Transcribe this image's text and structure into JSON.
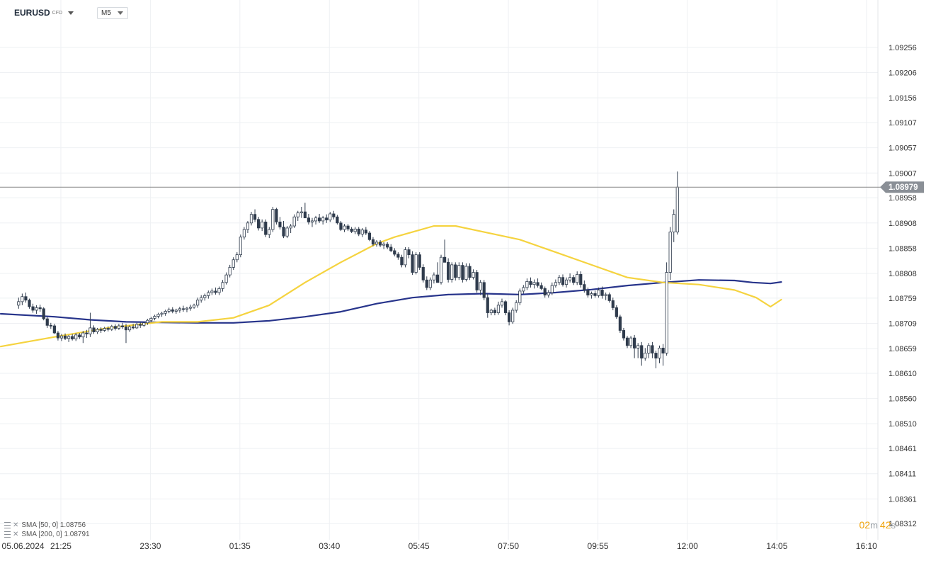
{
  "toolbar": {
    "symbol": "EURUSD",
    "symbol_type": "CFD",
    "timeframe": "M5"
  },
  "indicators": [
    {
      "label": "SMA [50, 0]",
      "value": "1.08756",
      "color": "#f5d33f"
    },
    {
      "label": "SMA [200, 0]",
      "value": "1.08791",
      "color": "#27348b"
    }
  ],
  "countdown": {
    "minutes": "02",
    "minutes_unit": "m",
    "seconds": "42",
    "seconds_unit": "s"
  },
  "chart_data": {
    "type": "candlestick",
    "ylim": [
      1.0828,
      1.0935
    ],
    "y_ticks": [
      "1.09256",
      "1.09206",
      "1.09156",
      "1.09107",
      "1.09057",
      "1.09007",
      "1.08958",
      "1.08908",
      "1.08858",
      "1.08808",
      "1.08759",
      "1.08709",
      "1.08659",
      "1.08610",
      "1.08560",
      "1.08510",
      "1.08461",
      "1.08411",
      "1.08361",
      "1.08312"
    ],
    "x_ticks": [
      "05.06.2024",
      "21:25",
      "23:30",
      "01:35",
      "03:40",
      "05:45",
      "07:50",
      "09:55",
      "12:00",
      "14:05",
      "16:10"
    ],
    "x_tick_index": [
      -4.7,
      11.8,
      36.8,
      61.8,
      86.8,
      111.8,
      136.8,
      161.8,
      186.8,
      211.8,
      236.8
    ],
    "x_range": [
      -5.2,
      240
    ],
    "last_price": "1.08979",
    "last_price_value": 1.08979,
    "colors": {
      "up": "#ffffff",
      "down": "#2f3b4c",
      "wick": "#2f3b4c",
      "sma50": "#f5d33f",
      "sma200": "#27348b",
      "price_line": "#888888",
      "price_tag": "#8a8f96",
      "grid": "#eef0f3",
      "axis_text": "#333333"
    },
    "candles": [
      [
        1.08745,
        1.0876,
        1.08738,
        1.08752
      ],
      [
        1.08752,
        1.08768,
        1.08745,
        1.08762
      ],
      [
        1.08762,
        1.0877,
        1.0875,
        1.08755
      ],
      [
        1.08755,
        1.08758,
        1.08738,
        1.08742
      ],
      [
        1.08742,
        1.08748,
        1.0873,
        1.08735
      ],
      [
        1.08735,
        1.08745,
        1.08728,
        1.0874
      ],
      [
        1.0874,
        1.08746,
        1.08732,
        1.08738
      ],
      [
        1.08738,
        1.08741,
        1.08715,
        1.08718
      ],
      [
        1.08718,
        1.08722,
        1.087,
        1.08705
      ],
      [
        1.08705,
        1.0871,
        1.08698,
        1.08704
      ],
      [
        1.08704,
        1.08708,
        1.08688,
        1.0869
      ],
      [
        1.0869,
        1.08694,
        1.08675,
        1.0868
      ],
      [
        1.0868,
        1.08688,
        1.08674,
        1.08684
      ],
      [
        1.08684,
        1.08689,
        1.08676,
        1.08679
      ],
      [
        1.08679,
        1.08686,
        1.08672,
        1.08683
      ],
      [
        1.08683,
        1.08688,
        1.08675,
        1.08678
      ],
      [
        1.08678,
        1.0869,
        1.08674,
        1.08686
      ],
      [
        1.08686,
        1.0869,
        1.08678,
        1.08682
      ],
      [
        1.08682,
        1.08694,
        1.0867,
        1.0869
      ],
      [
        1.0869,
        1.08696,
        1.0868,
        1.08688
      ],
      [
        1.08688,
        1.0873,
        1.08682,
        1.087
      ],
      [
        1.087,
        1.08705,
        1.08688,
        1.08692
      ],
      [
        1.08692,
        1.087,
        1.08688,
        1.08697
      ],
      [
        1.08697,
        1.08701,
        1.0869,
        1.08695
      ],
      [
        1.08695,
        1.08702,
        1.08692,
        1.08699
      ],
      [
        1.08699,
        1.08703,
        1.08693,
        1.08697
      ],
      [
        1.08697,
        1.08706,
        1.08694,
        1.08703
      ],
      [
        1.08703,
        1.08707,
        1.08695,
        1.08699
      ],
      [
        1.08699,
        1.08708,
        1.08696,
        1.08704
      ],
      [
        1.08704,
        1.0871,
        1.08698,
        1.08702
      ],
      [
        1.08702,
        1.08708,
        1.0867,
        1.08696
      ],
      [
        1.08696,
        1.08705,
        1.08692,
        1.08702
      ],
      [
        1.08702,
        1.08708,
        1.08697,
        1.087
      ],
      [
        1.087,
        1.0871,
        1.08698,
        1.08707
      ],
      [
        1.08707,
        1.08712,
        1.087,
        1.08705
      ],
      [
        1.08705,
        1.08712,
        1.08702,
        1.0871
      ],
      [
        1.0871,
        1.08718,
        1.08706,
        1.08715
      ],
      [
        1.08715,
        1.08722,
        1.08711,
        1.08719
      ],
      [
        1.08719,
        1.08726,
        1.08715,
        1.08723
      ],
      [
        1.08723,
        1.0873,
        1.08719,
        1.08727
      ],
      [
        1.08727,
        1.08732,
        1.08722,
        1.08729
      ],
      [
        1.08729,
        1.08736,
        1.08724,
        1.08733
      ],
      [
        1.08733,
        1.0874,
        1.08729,
        1.08736
      ],
      [
        1.08736,
        1.08741,
        1.08729,
        1.08733
      ],
      [
        1.08733,
        1.08738,
        1.08728,
        1.08735
      ],
      [
        1.08735,
        1.08742,
        1.0873,
        1.08738
      ],
      [
        1.08738,
        1.08744,
        1.08732,
        1.08737
      ],
      [
        1.08737,
        1.08742,
        1.08731,
        1.08739
      ],
      [
        1.08739,
        1.08746,
        1.08734,
        1.08741
      ],
      [
        1.08741,
        1.08748,
        1.08738,
        1.08745
      ],
      [
        1.08745,
        1.0876,
        1.0874,
        1.08755
      ],
      [
        1.08755,
        1.08765,
        1.0875,
        1.0876
      ],
      [
        1.0876,
        1.08768,
        1.08754,
        1.08764
      ],
      [
        1.08764,
        1.08774,
        1.08758,
        1.0877
      ],
      [
        1.0877,
        1.08778,
        1.08765,
        1.08773
      ],
      [
        1.08773,
        1.0878,
        1.08766,
        1.0877
      ],
      [
        1.0877,
        1.08782,
        1.08765,
        1.08778
      ],
      [
        1.08778,
        1.08795,
        1.08772,
        1.0879
      ],
      [
        1.0879,
        1.0881,
        1.08786,
        1.08805
      ],
      [
        1.08805,
        1.08825,
        1.088,
        1.0882
      ],
      [
        1.0882,
        1.0884,
        1.08815,
        1.08835
      ],
      [
        1.08835,
        1.0885,
        1.0883,
        1.08845
      ],
      [
        1.08845,
        1.08885,
        1.0884,
        1.0888
      ],
      [
        1.0888,
        1.089,
        1.08875,
        1.08895
      ],
      [
        1.08895,
        1.08912,
        1.08888,
        1.08908
      ],
      [
        1.08908,
        1.0893,
        1.08903,
        1.08925
      ],
      [
        1.08925,
        1.08935,
        1.0891,
        1.08915
      ],
      [
        1.08915,
        1.0892,
        1.08893,
        1.08898
      ],
      [
        1.08898,
        1.08915,
        1.08892,
        1.0891
      ],
      [
        1.0891,
        1.08915,
        1.0888,
        1.08885
      ],
      [
        1.08885,
        1.089,
        1.08878,
        1.08895
      ],
      [
        1.08895,
        1.0894,
        1.0889,
        1.08935
      ],
      [
        1.08935,
        1.08938,
        1.08905,
        1.0891
      ],
      [
        1.0891,
        1.0892,
        1.08895,
        1.089
      ],
      [
        1.089,
        1.08912,
        1.08878,
        1.08882
      ],
      [
        1.08882,
        1.08902,
        1.08878,
        1.08898
      ],
      [
        1.08898,
        1.08906,
        1.08888,
        1.08902
      ],
      [
        1.08902,
        1.08925,
        1.08898,
        1.0892
      ],
      [
        1.0892,
        1.08932,
        1.08912,
        1.08928
      ],
      [
        1.08928,
        1.0894,
        1.08918,
        1.0893
      ],
      [
        1.0893,
        1.08948,
        1.08922,
        1.08918
      ],
      [
        1.08918,
        1.08926,
        1.08905,
        1.0891
      ],
      [
        1.0891,
        1.08918,
        1.089,
        1.08912
      ],
      [
        1.08912,
        1.08922,
        1.08905,
        1.08918
      ],
      [
        1.08918,
        1.08926,
        1.08908,
        1.08912
      ],
      [
        1.08912,
        1.08922,
        1.08905,
        1.08918
      ],
      [
        1.08918,
        1.08925,
        1.08908,
        1.08914
      ],
      [
        1.08914,
        1.0893,
        1.0891,
        1.08926
      ],
      [
        1.08926,
        1.08932,
        1.08915,
        1.0892
      ],
      [
        1.0892,
        1.08924,
        1.08905,
        1.08908
      ],
      [
        1.08908,
        1.08912,
        1.08892,
        1.08895
      ],
      [
        1.08895,
        1.08906,
        1.0889,
        1.08902
      ],
      [
        1.08902,
        1.08906,
        1.08892,
        1.08896
      ],
      [
        1.08896,
        1.089,
        1.08888,
        1.08891
      ],
      [
        1.08891,
        1.089,
        1.08886,
        1.08896
      ],
      [
        1.08896,
        1.089,
        1.08882,
        1.08886
      ],
      [
        1.08886,
        1.08898,
        1.0888,
        1.08894
      ],
      [
        1.08894,
        1.089,
        1.08884,
        1.08888
      ],
      [
        1.08888,
        1.08892,
        1.08872,
        1.08875
      ],
      [
        1.08875,
        1.0888,
        1.08862,
        1.08866
      ],
      [
        1.08866,
        1.08874,
        1.08861,
        1.0887
      ],
      [
        1.0887,
        1.08874,
        1.0886,
        1.08864
      ],
      [
        1.08864,
        1.0887,
        1.08856,
        1.08866
      ],
      [
        1.08866,
        1.0887,
        1.08856,
        1.0886
      ],
      [
        1.0886,
        1.08866,
        1.0885,
        1.08853
      ],
      [
        1.08853,
        1.08858,
        1.08842,
        1.08846
      ],
      [
        1.08846,
        1.0885,
        1.08835,
        1.0884
      ],
      [
        1.0884,
        1.08845,
        1.0882,
        1.08825
      ],
      [
        1.08825,
        1.0886,
        1.0882,
        1.08855
      ],
      [
        1.08855,
        1.0886,
        1.08838,
        1.08845
      ],
      [
        1.08845,
        1.08852,
        1.08805,
        1.0881
      ],
      [
        1.0881,
        1.0885,
        1.08806,
        1.08845
      ],
      [
        1.08845,
        1.0885,
        1.08815,
        1.0882
      ],
      [
        1.0882,
        1.08826,
        1.0879,
        1.08795
      ],
      [
        1.08795,
        1.08802,
        1.08775,
        1.0878
      ],
      [
        1.0878,
        1.088,
        1.08775,
        1.08795
      ],
      [
        1.08795,
        1.0881,
        1.08788,
        1.08805
      ],
      [
        1.08805,
        1.0883,
        1.08795,
        1.0879
      ],
      [
        1.0879,
        1.08845,
        1.08786,
        1.0884
      ],
      [
        1.0884,
        1.08875,
        1.0883,
        1.0883
      ],
      [
        1.0883,
        1.08838,
        1.0879,
        1.08796
      ],
      [
        1.08796,
        1.0883,
        1.0879,
        1.08825
      ],
      [
        1.08825,
        1.0883,
        1.08794,
        1.088
      ],
      [
        1.088,
        1.0883,
        1.08795,
        1.08824
      ],
      [
        1.08824,
        1.0883,
        1.0879,
        1.08796
      ],
      [
        1.08796,
        1.08828,
        1.08792,
        1.08822
      ],
      [
        1.08822,
        1.08828,
        1.08795,
        1.088
      ],
      [
        1.088,
        1.08816,
        1.08796,
        1.0881
      ],
      [
        1.0881,
        1.08815,
        1.0877,
        1.08775
      ],
      [
        1.08775,
        1.08795,
        1.08765,
        1.0879
      ],
      [
        1.0879,
        1.08795,
        1.08755,
        1.0876
      ],
      [
        1.0876,
        1.08768,
        1.0872,
        1.0873
      ],
      [
        1.0873,
        1.08738,
        1.08725,
        1.08735
      ],
      [
        1.08735,
        1.0874,
        1.08725,
        1.0873
      ],
      [
        1.0873,
        1.08752,
        1.08726,
        1.08745
      ],
      [
        1.08745,
        1.08758,
        1.0874,
        1.08752
      ],
      [
        1.08752,
        1.08755,
        1.08725,
        1.0873
      ],
      [
        1.0873,
        1.08735,
        1.08705,
        1.08712
      ],
      [
        1.08712,
        1.0874,
        1.08708,
        1.08735
      ],
      [
        1.08735,
        1.08755,
        1.0873,
        1.0875
      ],
      [
        1.0875,
        1.08778,
        1.08745,
        1.08773
      ],
      [
        1.08773,
        1.08785,
        1.08768,
        1.0878
      ],
      [
        1.0878,
        1.08798,
        1.08775,
        1.08792
      ],
      [
        1.08792,
        1.088,
        1.0878,
        1.08786
      ],
      [
        1.08786,
        1.08796,
        1.08778,
        1.0879
      ],
      [
        1.0879,
        1.08798,
        1.0878,
        1.08784
      ],
      [
        1.08784,
        1.0879,
        1.08775,
        1.08778
      ],
      [
        1.08778,
        1.08782,
        1.0876,
        1.08765
      ],
      [
        1.08765,
        1.08775,
        1.0876,
        1.0877
      ],
      [
        1.0877,
        1.0879,
        1.08765,
        1.08784
      ],
      [
        1.08784,
        1.08796,
        1.0878,
        1.0879
      ],
      [
        1.0879,
        1.08805,
        1.08785,
        1.088
      ],
      [
        1.088,
        1.08806,
        1.08782,
        1.08786
      ],
      [
        1.08786,
        1.088,
        1.0878,
        1.08795
      ],
      [
        1.08795,
        1.08808,
        1.0879,
        1.088
      ],
      [
        1.088,
        1.08805,
        1.08785,
        1.0879
      ],
      [
        1.0879,
        1.08812,
        1.08785,
        1.08806
      ],
      [
        1.08806,
        1.08812,
        1.0878,
        1.08786
      ],
      [
        1.08786,
        1.08794,
        1.0877,
        1.08775
      ],
      [
        1.08775,
        1.0878,
        1.0876,
        1.08765
      ],
      [
        1.08765,
        1.08772,
        1.08758,
        1.08768
      ],
      [
        1.08768,
        1.08774,
        1.0876,
        1.08764
      ],
      [
        1.08764,
        1.0878,
        1.0876,
        1.08775
      ],
      [
        1.08775,
        1.08782,
        1.08758,
        1.08764
      ],
      [
        1.08764,
        1.0877,
        1.08755,
        1.08766
      ],
      [
        1.08766,
        1.0877,
        1.0875,
        1.08754
      ],
      [
        1.08754,
        1.0876,
        1.08735,
        1.0874
      ],
      [
        1.0874,
        1.08745,
        1.08718,
        1.08722
      ],
      [
        1.08722,
        1.08726,
        1.0869,
        1.08695
      ],
      [
        1.08695,
        1.087,
        1.08675,
        1.0868
      ],
      [
        1.0868,
        1.08684,
        1.0866,
        1.08665
      ],
      [
        1.08665,
        1.08684,
        1.0866,
        1.0868
      ],
      [
        1.0868,
        1.08686,
        1.0864,
        1.0866
      ],
      [
        1.0866,
        1.0867,
        1.0864,
        1.08665
      ],
      [
        1.08665,
        1.08672,
        1.08625,
        1.0864
      ],
      [
        1.0864,
        1.0866,
        1.08635,
        1.0865
      ],
      [
        1.0865,
        1.0867,
        1.0864,
        1.08665
      ],
      [
        1.08665,
        1.08672,
        1.0864,
        1.0865
      ],
      [
        1.0865,
        1.08655,
        1.0862,
        1.0864
      ],
      [
        1.0864,
        1.08665,
        1.0863,
        1.0866
      ],
      [
        1.0866,
        1.08668,
        1.08625,
        1.0865
      ],
      [
        1.0865,
        1.0883,
        1.08645,
        1.0881
      ],
      [
        1.0881,
        1.089,
        1.08795,
        1.0889
      ],
      [
        1.0889,
        1.08935,
        1.0887,
        1.08925
      ],
      [
        1.0889,
        1.0901,
        1.08885,
        1.08979
      ]
    ],
    "sma50_knots": [
      [
        -5,
        1.08663
      ],
      [
        10,
        1.08682
      ],
      [
        25,
        1.087
      ],
      [
        40,
        1.08712
      ],
      [
        50,
        1.08712
      ],
      [
        60,
        1.0872
      ],
      [
        70,
        1.08745
      ],
      [
        80,
        1.0879
      ],
      [
        90,
        1.0883
      ],
      [
        100,
        1.08867
      ],
      [
        105,
        1.0888
      ],
      [
        110,
        1.0889
      ],
      [
        116,
        1.08902
      ],
      [
        122,
        1.08902
      ],
      [
        130,
        1.0889
      ],
      [
        140,
        1.08875
      ],
      [
        150,
        1.0885
      ],
      [
        160,
        1.08825
      ],
      [
        170,
        1.088
      ],
      [
        180,
        1.0879
      ],
      [
        190,
        1.08786
      ],
      [
        200,
        1.08775
      ],
      [
        206,
        1.0876
      ],
      [
        210,
        1.08742
      ],
      [
        213,
        1.08756
      ]
    ],
    "sma200_knots": [
      [
        -5,
        1.08728
      ],
      [
        10,
        1.08722
      ],
      [
        20,
        1.08716
      ],
      [
        30,
        1.08712
      ],
      [
        50,
        1.0871
      ],
      [
        60,
        1.0871
      ],
      [
        70,
        1.08714
      ],
      [
        80,
        1.08722
      ],
      [
        90,
        1.08732
      ],
      [
        100,
        1.08748
      ],
      [
        110,
        1.0876
      ],
      [
        120,
        1.08766
      ],
      [
        130,
        1.08768
      ],
      [
        140,
        1.08766
      ],
      [
        150,
        1.0877
      ],
      [
        160,
        1.08776
      ],
      [
        170,
        1.08784
      ],
      [
        180,
        1.0879
      ],
      [
        190,
        1.08795
      ],
      [
        200,
        1.08794
      ],
      [
        205,
        1.0879
      ],
      [
        210,
        1.08788
      ],
      [
        213,
        1.08791
      ]
    ]
  }
}
